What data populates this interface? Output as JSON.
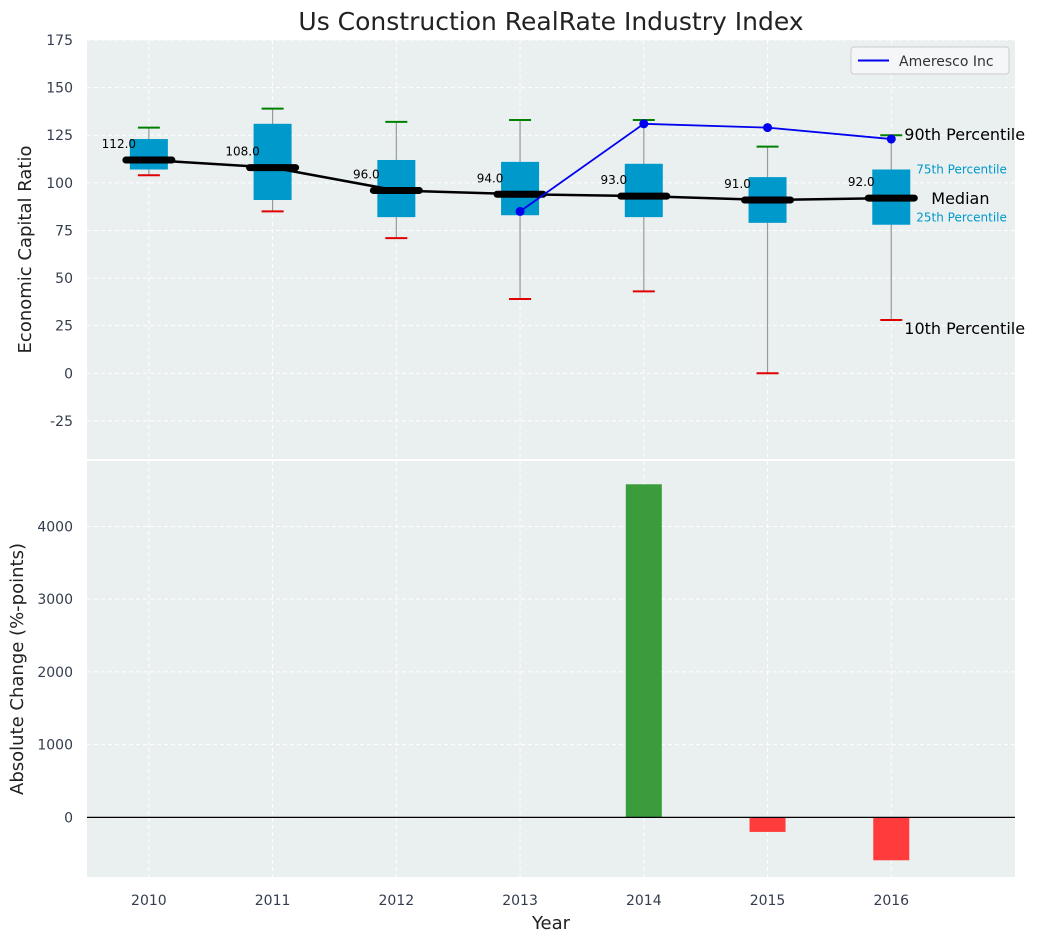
{
  "chart_data": [
    {
      "type": "box",
      "title": "Us Construction RealRate Industry Index",
      "ylabel": "Economic Capital Ratio",
      "ylim": [
        -45,
        175
      ],
      "yticks": [
        -25,
        0,
        25,
        50,
        75,
        100,
        125,
        150,
        175
      ],
      "categories": [
        "2010",
        "2011",
        "2012",
        "2013",
        "2014",
        "2015",
        "2016"
      ],
      "p10": [
        104,
        85,
        71,
        39,
        43,
        0,
        28
      ],
      "p25": [
        107,
        91,
        82,
        83,
        82,
        79,
        78
      ],
      "median": [
        112,
        108,
        96,
        94,
        93,
        91,
        92
      ],
      "p75": [
        123,
        131,
        112,
        111,
        110,
        103,
        107
      ],
      "p90": [
        129,
        139,
        132,
        133,
        133,
        119,
        125
      ],
      "median_labels": [
        "112.0",
        "108.0",
        "96.0",
        "94.0",
        "93.0",
        "91.0",
        "92.0"
      ],
      "series": [
        {
          "name": "Ameresco Inc",
          "x": [
            "2013",
            "2014",
            "2015",
            "2016"
          ],
          "values": [
            85,
            131,
            129,
            123
          ]
        }
      ],
      "legend": {
        "position": "top-right",
        "label": "Ameresco Inc"
      },
      "annotations": {
        "p90": "90th Percentile",
        "p75": "75th Percentile",
        "median": "Median",
        "p25": "25th Percentile",
        "p10": "10th Percentile"
      },
      "grid": true
    },
    {
      "type": "bar",
      "xlabel": "Year",
      "ylabel": "Absolute Change (%-points)",
      "ylim": [
        -820,
        4900
      ],
      "yticks": [
        0,
        1000,
        2000,
        3000,
        4000
      ],
      "categories": [
        "2010",
        "2011",
        "2012",
        "2013",
        "2014",
        "2015",
        "2016"
      ],
      "values": [
        0,
        0,
        0,
        0,
        4580,
        -200,
        -590
      ],
      "grid": true
    }
  ],
  "colors": {
    "panel_bg": "#eaeff0",
    "box": "#0099cc",
    "median_line": "#000000",
    "whisker": "#999999",
    "p90_cap": "#008000",
    "p10_cap": "#e00000",
    "company": "#0000ee",
    "bar_positive": "#3a9c3a",
    "bar_negative": "#ff3b3b",
    "text": "#333d4d"
  }
}
